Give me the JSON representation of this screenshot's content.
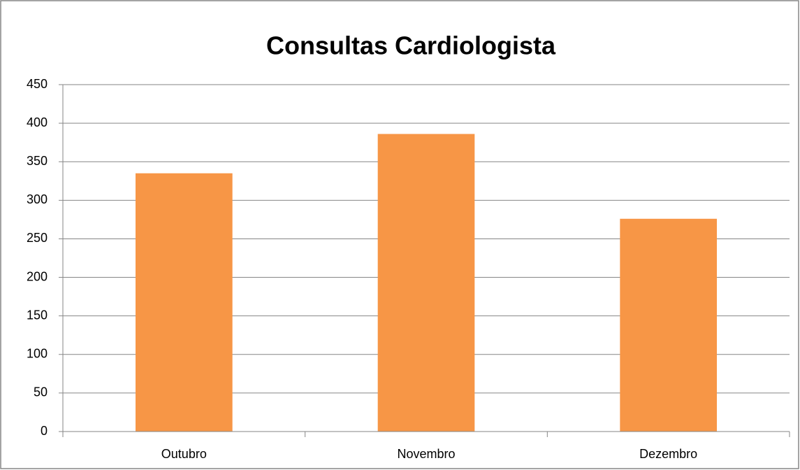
{
  "chart_data": {
    "type": "bar",
    "title": "Consultas Cardiologista",
    "categories": [
      "Outubro",
      "Novembro",
      "Dezembro"
    ],
    "values": [
      335,
      386,
      276
    ],
    "color": "#f79646",
    "ylim": [
      0,
      450
    ],
    "yticks": [
      0,
      50,
      100,
      150,
      200,
      250,
      300,
      350,
      400,
      450
    ],
    "grid": true
  }
}
